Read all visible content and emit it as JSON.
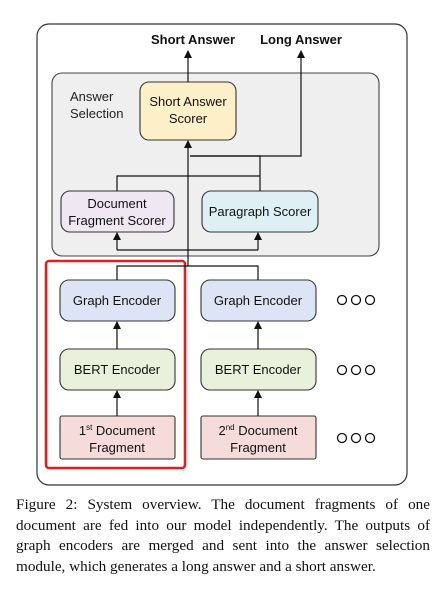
{
  "outputs": {
    "short": "Short Answer",
    "long": "Long Answer"
  },
  "answer_selection": {
    "line1": "Answer",
    "line2": "Selection"
  },
  "short_scorer": {
    "line1": "Short Answer",
    "line2": "Scorer"
  },
  "doc_scorer": {
    "line1": "Document",
    "line2": "Fragment Scorer"
  },
  "para_scorer": {
    "label": "Paragraph Scorer"
  },
  "fragment1": {
    "graph": "Graph Encoder",
    "bert": "BERT Encoder",
    "doc_num": "1",
    "doc_sup": "st",
    "doc_word": " Document",
    "doc_line2": "Fragment"
  },
  "fragment2": {
    "graph": "Graph Encoder",
    "bert": "BERT Encoder",
    "doc_num": "2",
    "doc_sup": "nd",
    "doc_word": " Document",
    "doc_line2": "Fragment"
  },
  "caption": "Figure 2: System overview. The document fragments of one document are fed into our model independently. The outputs of graph encoders are merged and sent into the answer selection module, which generates a long answer and a short answer.",
  "colors": {
    "graph_fill": "#dde4f5",
    "bert_fill": "#e9f0dc",
    "doc_fill": "#f5dcda",
    "short_fill": "#fdf0c8",
    "doc_scorer_fill": "#efe8f3",
    "para_fill": "#dff0f5",
    "panel_fill": "#efefef",
    "highlight": "#e02020"
  }
}
